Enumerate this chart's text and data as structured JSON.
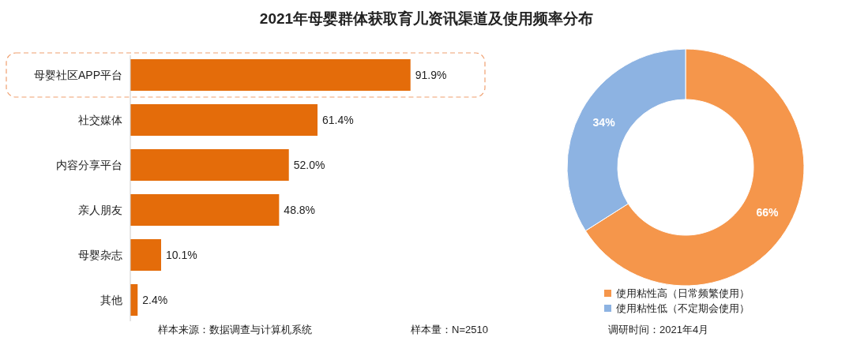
{
  "chart_data": [
    {
      "type": "bar",
      "orientation": "horizontal",
      "title": "2021年母婴群体获取育儿资讯渠道及使用频率分布",
      "categories": [
        "母婴社区APP平台",
        "社交媒体",
        "内容分享平台",
        "亲人朋友",
        "母婴杂志",
        "其他"
      ],
      "values": [
        91.9,
        61.4,
        52.0,
        48.8,
        10.1,
        2.4
      ],
      "value_labels": [
        "91.9%",
        "61.4%",
        "52.0%",
        "48.8%",
        "10.1%",
        "2.4%"
      ],
      "color": "#e46c0a",
      "annotations": [
        "样本来源：数据调查与计算机系统",
        "样本量：N=2510",
        "调研时间：2021年4月"
      ]
    },
    {
      "type": "donut",
      "categories": [
        "使用粘性高（日常频繁使用）",
        "使用粘性低（不定期会使用）"
      ],
      "values": [
        66,
        34
      ],
      "value_labels": [
        "66%",
        "34%"
      ],
      "colors": [
        "#f5964b",
        "#8db3e2"
      ],
      "legend": "bottom"
    }
  ]
}
